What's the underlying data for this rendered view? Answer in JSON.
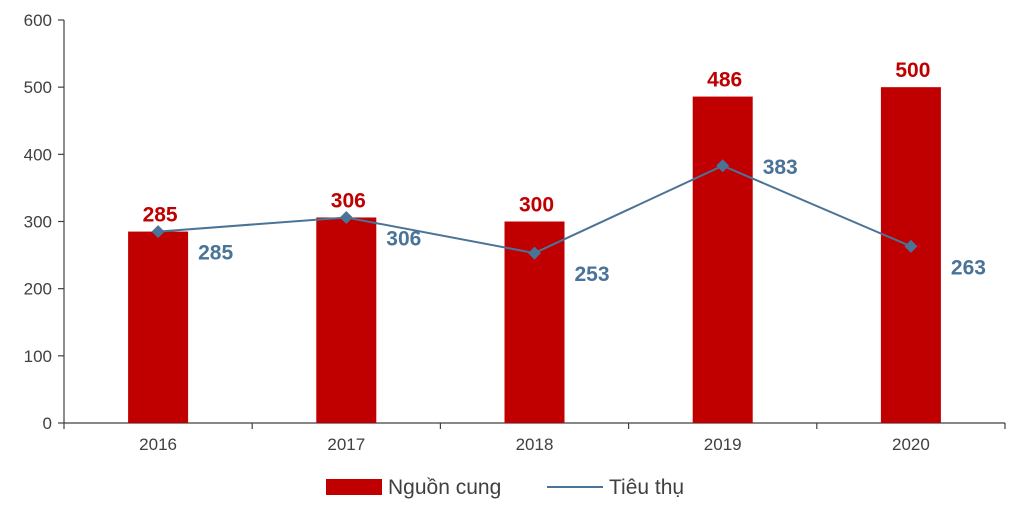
{
  "chart_data": {
    "type": "bar",
    "categories": [
      "2016",
      "2017",
      "2018",
      "2019",
      "2020"
    ],
    "ylim": [
      0,
      600
    ],
    "yticks": [
      0,
      100,
      200,
      300,
      400,
      500,
      600
    ],
    "legend_position": "bottom",
    "grid": false,
    "series": [
      {
        "name": "Nguồn cung",
        "kind": "bar",
        "color": "#c00000",
        "values": [
          285,
          306,
          300,
          486,
          500
        ]
      },
      {
        "name": "Tiêu thụ",
        "kind": "line",
        "color": "#4a7398",
        "marker": "diamond",
        "values": [
          285,
          306,
          253,
          383,
          263
        ]
      }
    ]
  }
}
